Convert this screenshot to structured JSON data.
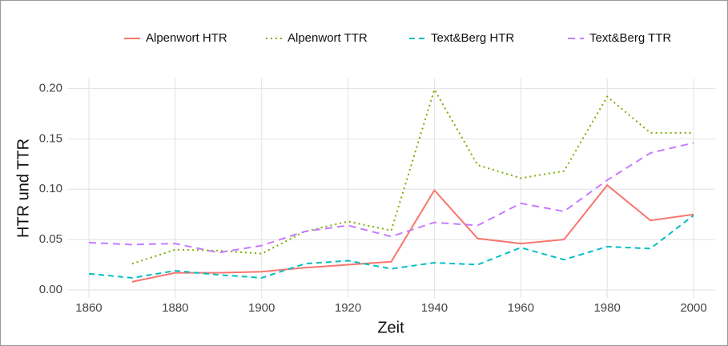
{
  "chart_data": {
    "type": "line",
    "x": [
      1860,
      1870,
      1880,
      1890,
      1900,
      1910,
      1920,
      1930,
      1940,
      1950,
      1960,
      1970,
      1980,
      1990,
      2000
    ],
    "series": [
      {
        "name": "Alpenwort HTR",
        "color": "#f8766d",
        "linestyle": "solid",
        "values": [
          null,
          0.008,
          0.017,
          0.017,
          0.018,
          0.022,
          0.025,
          0.028,
          0.099,
          0.051,
          0.046,
          0.05,
          0.104,
          0.069,
          0.075
        ]
      },
      {
        "name": "Alpenwort TTR",
        "color": "#7cae00",
        "linestyle": "dotted",
        "values": [
          null,
          0.026,
          0.04,
          0.039,
          0.036,
          0.058,
          0.068,
          0.059,
          0.199,
          0.124,
          0.111,
          0.118,
          0.192,
          0.156,
          0.156
        ]
      },
      {
        "name": "Text&Berg HTR",
        "color": "#00bfc4",
        "linestyle": "dashed",
        "values": [
          0.016,
          0.012,
          0.019,
          0.015,
          0.012,
          0.026,
          0.029,
          0.021,
          0.027,
          0.025,
          0.042,
          0.03,
          0.043,
          0.041,
          0.074
        ]
      },
      {
        "name": "Text&Berg TTR",
        "color": "#c77cff",
        "linestyle": "longdash",
        "values": [
          0.047,
          0.045,
          0.046,
          0.037,
          0.044,
          0.058,
          0.064,
          0.053,
          0.067,
          0.064,
          0.086,
          0.078,
          0.109,
          0.136,
          0.146
        ]
      }
    ],
    "xlabel": "Zeit",
    "ylabel": "HTR und TTR",
    "xlim": [
      1855,
      2005
    ],
    "xticks": [
      1860,
      1880,
      1900,
      1920,
      1940,
      1960,
      1980,
      2000
    ],
    "ylim": [
      -0.008,
      0.21
    ],
    "yticks": [
      {
        "value": 0,
        "label": "0.00"
      },
      0.05,
      {
        "value": 0.1,
        "label": "0.10"
      },
      0.15,
      {
        "value": 0.2,
        "label": "0.20"
      }
    ],
    "grid": true,
    "legend": "top"
  }
}
